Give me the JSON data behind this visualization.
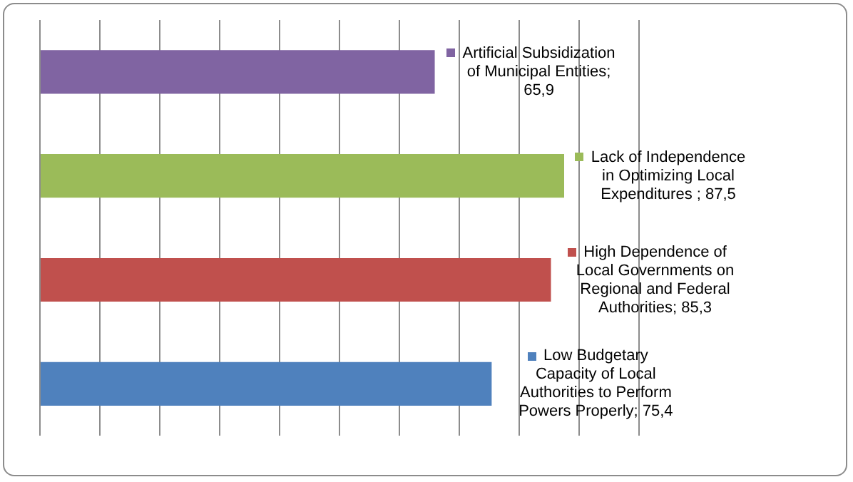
{
  "chart_data": {
    "type": "bar",
    "orientation": "horizontal",
    "categories": [
      null,
      null,
      null,
      null
    ],
    "values": [
      65.9,
      87.5,
      85.3,
      75.4
    ],
    "colors": [
      "#8064a2",
      "#9bbb59",
      "#c0504d",
      "#4f81bd"
    ],
    "value_labels": [
      "Artificial Subsidization of Municipal Entities; 65,9",
      "Lack of Independence in Optimizing Local Expenditures ; 87,5",
      "High Dependence of Local Governments on Regional and Federal Authorities; 85,3",
      "Low Budgetary Capacity of Local Authorities to Perform Powers Properly; 75,4"
    ],
    "xlim": [
      0,
      100
    ],
    "xticks": [
      {
        "value": 0,
        "label": null
      },
      {
        "value": 10,
        "label": null
      },
      {
        "value": 20,
        "label": null
      },
      {
        "value": 30,
        "label": null
      },
      {
        "value": 40,
        "label": null
      },
      {
        "value": 50,
        "label": null
      },
      {
        "value": 60,
        "label": null
      },
      {
        "value": 70,
        "label": null
      },
      {
        "value": 80,
        "label": null
      },
      {
        "value": 90,
        "label": null
      },
      {
        "value": 100,
        "label": null
      }
    ],
    "grid": "x"
  }
}
